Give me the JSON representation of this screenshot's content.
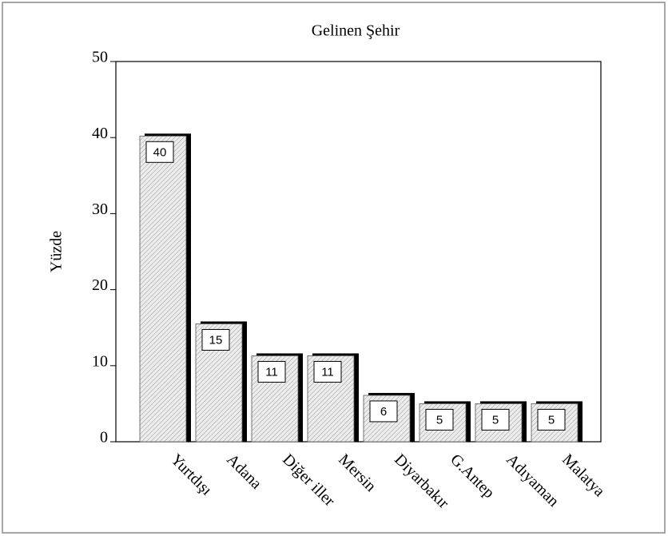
{
  "chart_data": {
    "type": "bar",
    "title": "Gelinen Şehir",
    "y_label": "Yüzde",
    "categories": [
      "Yurtdışı",
      "Adana",
      "Diğer iller",
      "Mersin",
      "Diyarbakır",
      "G.Antep",
      "Adıyaman",
      "Malatya"
    ],
    "values": [
      40.2,
      15.5,
      11.3,
      11.3,
      6.1,
      5.0,
      5.0,
      5.0
    ],
    "value_labels": [
      "40",
      "15",
      "11",
      "11",
      "6",
      "5",
      "5",
      "5"
    ],
    "color": "#d8d8d8",
    "ylim": [
      0,
      50
    ],
    "yticks": [
      0,
      10,
      20,
      30,
      40,
      50
    ],
    "grid": false
  }
}
